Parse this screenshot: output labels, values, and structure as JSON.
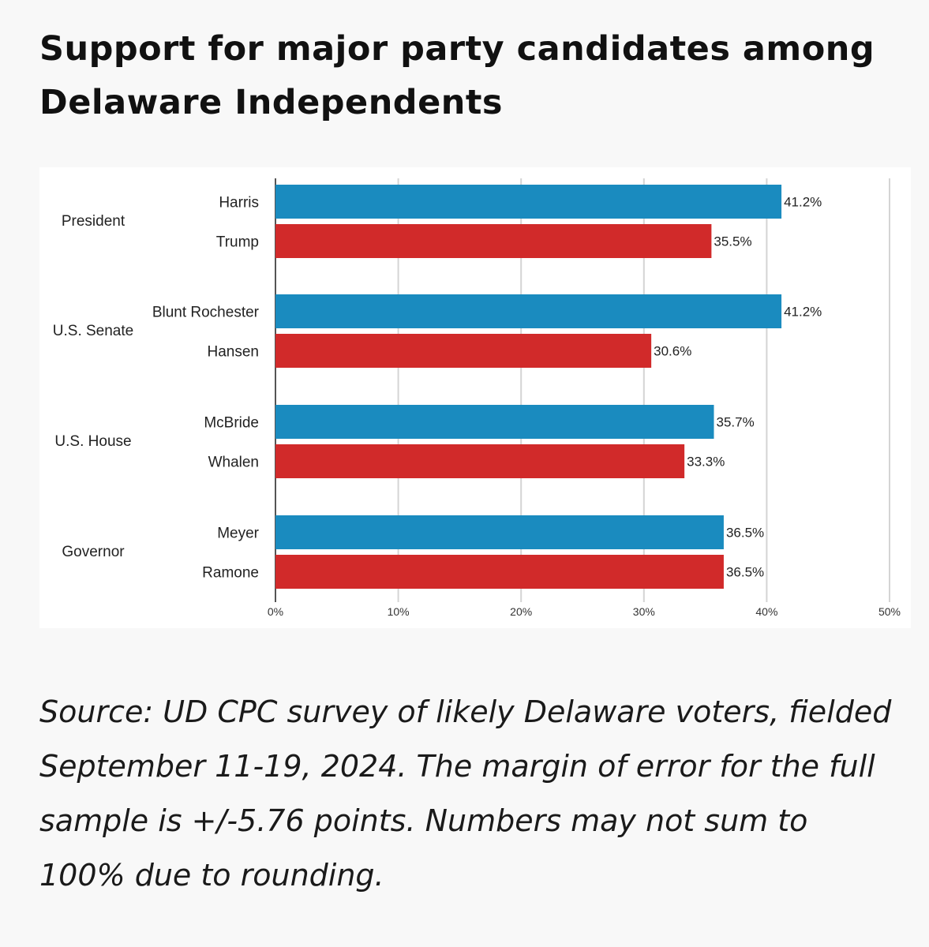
{
  "title": "Support for major party candidates among Delaware Independents",
  "source": "Source: UD CPC survey of likely Delaware voters, fielded September 11-19, 2024. The margin of error for the full sample is +/-5.76 points. Numbers may not sum to 100% due to rounding.",
  "colors": {
    "democrat": "#1a8bbf",
    "republican": "#d12a2a"
  },
  "chart_data": {
    "type": "bar",
    "orientation": "horizontal",
    "title": "Support for major party candidates among Delaware Independents",
    "xlabel": "",
    "ylabel": "",
    "xlim": [
      0,
      50
    ],
    "ticks": [
      "0%",
      "10%",
      "20%",
      "30%",
      "40%",
      "50%"
    ],
    "grid": true,
    "groups": [
      {
        "race": "President",
        "candidates": [
          {
            "name": "Harris",
            "party": "democrat",
            "value": 41.2,
            "label": "41.2%"
          },
          {
            "name": "Trump",
            "party": "republican",
            "value": 35.5,
            "label": "35.5%"
          }
        ]
      },
      {
        "race": "U.S. Senate",
        "candidates": [
          {
            "name": "Blunt Rochester",
            "party": "democrat",
            "value": 41.2,
            "label": "41.2%"
          },
          {
            "name": "Hansen",
            "party": "republican",
            "value": 30.6,
            "label": "30.6%"
          }
        ]
      },
      {
        "race": "U.S. House",
        "candidates": [
          {
            "name": "McBride",
            "party": "democrat",
            "value": 35.7,
            "label": "35.7%"
          },
          {
            "name": "Whalen",
            "party": "republican",
            "value": 33.3,
            "label": "33.3%"
          }
        ]
      },
      {
        "race": "Governor",
        "candidates": [
          {
            "name": "Meyer",
            "party": "democrat",
            "value": 36.5,
            "label": "36.5%"
          },
          {
            "name": "Ramone",
            "party": "republican",
            "value": 36.5,
            "label": "36.5%"
          }
        ]
      }
    ]
  }
}
